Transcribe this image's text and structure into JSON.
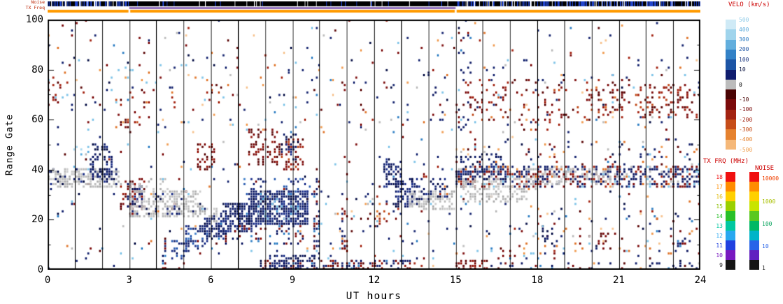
{
  "chart_data": {
    "type": "scatter",
    "title": "",
    "xlabel": "UT hours",
    "ylabel": "Range Gate",
    "xlim": [
      0,
      24
    ],
    "ylim": [
      0,
      100
    ],
    "xticks": [
      0,
      3,
      6,
      9,
      12,
      15,
      18,
      21,
      24
    ],
    "yticks": [
      0,
      20,
      40,
      60,
      80,
      100
    ],
    "x_minor_step": 1,
    "gridlines": "vertical-hourly",
    "seed": 7,
    "resolution": {
      "time_bins": 280,
      "gates": 101
    },
    "strips": {
      "noise_label": "Noise",
      "txfreq_label": "TX Freq",
      "noise_bar": {
        "base": "#000000",
        "tick": "#2244cc",
        "solid_hours": [
          3,
          15
        ]
      },
      "purple_line": {
        "hours": [
          3,
          15
        ],
        "color": "#5a2a9d"
      },
      "orange_bar": {
        "color": "#ff9a00",
        "gap_hours": [
          3,
          15
        ]
      }
    },
    "legends": {
      "velo": {
        "title": "VELO (km/s)",
        "cells": [
          "#cfeaf6",
          "#9fd4ec",
          "#62aedd",
          "#3381c6",
          "#1d55a5",
          "#101d6e",
          "#bcbcbc",
          "#4a0404",
          "#7b0b0b",
          "#a32311",
          "#c64d19",
          "#e5822f",
          "#f5b879"
        ],
        "labels": [
          {
            "f": 0,
            "t": "500",
            "c": "#8fcbe8"
          },
          {
            "f": 0.077,
            "t": "400",
            "c": "#62aedd"
          },
          {
            "f": 0.154,
            "t": "300",
            "c": "#3381c6"
          },
          {
            "f": 0.231,
            "t": "200",
            "c": "#1d55a5"
          },
          {
            "f": 0.308,
            "t": "100",
            "c": "#17337e"
          },
          {
            "f": 0.385,
            "t": "10",
            "c": "#0a1340"
          },
          {
            "f": 0.5,
            "t": "0",
            "c": "#000000"
          },
          {
            "f": 0.615,
            "t": "-10",
            "c": "#4a0404"
          },
          {
            "f": 0.692,
            "t": "-100",
            "c": "#7b0b0b"
          },
          {
            "f": 0.769,
            "t": "-200",
            "c": "#a32311"
          },
          {
            "f": 0.846,
            "t": "-300",
            "c": "#c64d19"
          },
          {
            "f": 0.923,
            "t": "-400",
            "c": "#e5822f"
          },
          {
            "f": 1,
            "t": "-500",
            "c": "#f0a050"
          }
        ]
      },
      "txfrq": {
        "title": "TX FRQ (MHz)",
        "cells": [
          "#f01010",
          "#ff8c00",
          "#ffd000",
          "#9ad000",
          "#28c028",
          "#00c8a0",
          "#28a8f0",
          "#2040e0",
          "#7818c0",
          "#141414"
        ],
        "labels": [
          {
            "f": 0.05,
            "t": "18",
            "c": "#f01010"
          },
          {
            "f": 0.15,
            "t": "17",
            "c": "#ff8c00"
          },
          {
            "f": 0.25,
            "t": "16",
            "c": "#e0b800"
          },
          {
            "f": 0.35,
            "t": "15",
            "c": "#8cc000"
          },
          {
            "f": 0.45,
            "t": "14",
            "c": "#28c028"
          },
          {
            "f": 0.55,
            "t": "13",
            "c": "#00c8a0"
          },
          {
            "f": 0.65,
            "t": "12",
            "c": "#28a8f0"
          },
          {
            "f": 0.75,
            "t": "11",
            "c": "#2040e0"
          },
          {
            "f": 0.85,
            "t": "10",
            "c": "#7818c0"
          },
          {
            "f": 0.95,
            "t": "9",
            "c": "#141414"
          }
        ]
      },
      "noise": {
        "title": "NOISE",
        "cells": [
          "#f01010",
          "#ff8c00",
          "#ffd000",
          "#c8e400",
          "#5ac820",
          "#00b864",
          "#00b4c8",
          "#2864e8",
          "#6020c0",
          "#141414"
        ],
        "labels": [
          {
            "f": 0.07,
            "t": "10000",
            "c": "#f04000"
          },
          {
            "f": 0.3,
            "t": "1000",
            "c": "#a8c000"
          },
          {
            "f": 0.53,
            "t": "100",
            "c": "#00a058"
          },
          {
            "f": 0.76,
            "t": "10",
            "c": "#2864e8"
          },
          {
            "f": 0.98,
            "t": "1",
            "c": "#141414"
          }
        ]
      }
    },
    "palettes": {
      "navy": [
        [
          "#0d1862",
          3
        ],
        [
          "#15246f",
          3
        ],
        [
          "#1b2f8a",
          2
        ],
        [
          "#060f45",
          2
        ]
      ],
      "navyblue": [
        [
          "#15246f",
          3
        ],
        [
          "#2a5cb0",
          2
        ],
        [
          "#1b2f8a",
          2
        ],
        [
          "#3f7fc9",
          1
        ]
      ],
      "ltblue": [
        [
          "#7fc4e8",
          2
        ],
        [
          "#a8d8f0",
          2
        ],
        [
          "#57aadd",
          1
        ]
      ],
      "gray": [
        [
          "#bdbdbd",
          3
        ],
        [
          "#cccccc",
          2
        ],
        [
          "#adadad",
          2
        ]
      ],
      "reds_dark": [
        [
          "#5c0707",
          3
        ],
        [
          "#7d0d0d",
          3
        ],
        [
          "#93150b",
          2
        ]
      ],
      "reds_mix": [
        [
          "#7d0d0d",
          2
        ],
        [
          "#a32311",
          2
        ],
        [
          "#c14a1a",
          1
        ],
        [
          "#5c0707",
          2
        ]
      ],
      "mix": [
        [
          "#15246f",
          3
        ],
        [
          "#7d0d0d",
          2
        ],
        [
          "#a32311",
          1
        ],
        [
          "#7fc4e8",
          1.5
        ],
        [
          "#e0762c",
          1
        ],
        [
          "#f09c52",
          1
        ],
        [
          "#2f7fc4",
          1
        ],
        [
          "#bdbdbd",
          0.7
        ],
        [
          "#5c0707",
          1
        ],
        [
          "#f7c491",
          0.8
        ],
        [
          "#060f45",
          1
        ]
      ],
      "mixdark": [
        [
          "#0d1862",
          3
        ],
        [
          "#15246f",
          2
        ],
        [
          "#7d0d0d",
          2
        ],
        [
          "#93150b",
          1
        ],
        [
          "#5c0707",
          1
        ],
        [
          "#2f7fc4",
          0.7
        ]
      ],
      "bandmix": [
        [
          "#0d1862",
          3
        ],
        [
          "#15246f",
          2
        ],
        [
          "#7d0d0d",
          2
        ],
        [
          "#a32311",
          1
        ],
        [
          "#bdbdbd",
          1.5
        ],
        [
          "#7fc4e8",
          0.6
        ],
        [
          "#e0762c",
          0.5
        ]
      ]
    },
    "regions": [
      {
        "h": [
          0,
          24
        ],
        "g": [
          0,
          100
        ],
        "d": 0.018,
        "p": "mix"
      },
      {
        "h": [
          0,
          24
        ],
        "g": [
          55,
          82
        ],
        "d": 0.014,
        "p": "mix"
      },
      {
        "h": [
          0,
          24
        ],
        "g": [
          5,
          30
        ],
        "d": 0.008,
        "p": "mix"
      },
      {
        "h": [
          0,
          2.6
        ],
        "g": [
          33,
          40
        ],
        "d": 0.55,
        "p": "gray"
      },
      {
        "h": [
          0,
          2.6
        ],
        "g": [
          34,
          40
        ],
        "d": 0.15,
        "p": "navy"
      },
      {
        "h": [
          0.05,
          0.5
        ],
        "g": [
          66,
          76
        ],
        "d": 0.15,
        "p": "reds_mix"
      },
      {
        "h": [
          1.6,
          2.4
        ],
        "g": [
          36,
          50
        ],
        "d": 0.4,
        "p": "navy"
      },
      {
        "h": [
          0.9,
          1.5
        ],
        "g": [
          40,
          50
        ],
        "d": 0.12,
        "p": "ltblue"
      },
      {
        "h": [
          2.7,
          3.6
        ],
        "g": [
          24,
          36
        ],
        "d": 0.35,
        "p": "reds_dark"
      },
      {
        "h": [
          2.9,
          3.45
        ],
        "g": [
          25,
          34
        ],
        "d": 0.3,
        "p": "navy"
      },
      {
        "h": [
          2.5,
          3.7
        ],
        "g": [
          55,
          72
        ],
        "d": 0.07,
        "p": "reds_mix"
      },
      {
        "h": [
          3.0,
          5.6
        ],
        "g": [
          21,
          31
        ],
        "d": 0.5,
        "p": "gray"
      },
      {
        "h": [
          3.0,
          4.4
        ],
        "g": [
          30,
          36
        ],
        "d": 0.25,
        "p": "gray"
      },
      {
        "h": [
          3.0,
          5.6
        ],
        "g": [
          22,
          30
        ],
        "d": 0.1,
        "p": "navy"
      },
      {
        "h": [
          4.2,
          4.36
        ],
        "g": [
          0,
          12
        ],
        "d": 0.45,
        "p": "mixdark"
      },
      {
        "h": [
          4.6,
          5.2
        ],
        "g": [
          4,
          12
        ],
        "d": 0.4,
        "p": "navyblue"
      },
      {
        "h": [
          5.1,
          5.9
        ],
        "g": [
          8,
          17
        ],
        "d": 0.45,
        "p": "navyblue"
      },
      {
        "h": [
          5.8,
          6.6
        ],
        "g": [
          12,
          21
        ],
        "d": 0.5,
        "p": "navy"
      },
      {
        "h": [
          6.5,
          7.5
        ],
        "g": [
          15,
          26
        ],
        "d": 0.6,
        "p": "navy"
      },
      {
        "h": [
          7.4,
          9.55
        ],
        "g": [
          18,
          31
        ],
        "d": 0.72,
        "p": "navy"
      },
      {
        "h": [
          7.2,
          9.7
        ],
        "g": [
          29,
          36
        ],
        "d": 0.18,
        "p": "navyblue"
      },
      {
        "h": [
          6.2,
          9.5
        ],
        "g": [
          10,
          18
        ],
        "d": 0.16,
        "p": "mixdark"
      },
      {
        "h": [
          7.5,
          9.3
        ],
        "g": [
          20,
          30
        ],
        "d": 0.08,
        "p": "ltblue"
      },
      {
        "h": [
          5.4,
          6.2
        ],
        "g": [
          18,
          26
        ],
        "d": 0.25,
        "p": "gray"
      },
      {
        "h": [
          5.5,
          6.1
        ],
        "g": [
          40,
          50
        ],
        "d": 0.28,
        "p": "reds_dark"
      },
      {
        "h": [
          7.4,
          8.4
        ],
        "g": [
          42,
          56
        ],
        "d": 0.32,
        "p": "reds_dark"
      },
      {
        "h": [
          8.5,
          9.4
        ],
        "g": [
          40,
          52
        ],
        "d": 0.26,
        "p": "reds_mix"
      },
      {
        "h": [
          8.6,
          9.25
        ],
        "g": [
          44,
          54
        ],
        "d": 0.22,
        "p": "navy"
      },
      {
        "h": [
          6.8,
          7.3
        ],
        "g": [
          80,
          90
        ],
        "d": 0.12,
        "p": "reds_mix"
      },
      {
        "h": [
          5.8,
          6.4
        ],
        "g": [
          66,
          74
        ],
        "d": 0.1,
        "p": "reds_mix"
      },
      {
        "h": [
          7.8,
          13.3
        ],
        "g": [
          0,
          3
        ],
        "d": 0.45,
        "p": "mixdark"
      },
      {
        "h": [
          8.2,
          9.8
        ],
        "g": [
          0,
          5
        ],
        "d": 0.4,
        "p": "navy"
      },
      {
        "h": [
          15.0,
          16.2
        ],
        "g": [
          0,
          3
        ],
        "d": 0.5,
        "p": "reds_dark"
      },
      {
        "h": [
          16.2,
          24
        ],
        "g": [
          0,
          2
        ],
        "d": 0.12,
        "p": "mixdark"
      },
      {
        "h": [
          9.85,
          10.0
        ],
        "g": [
          4,
          40
        ],
        "d": 0.3,
        "p": "mixdark"
      },
      {
        "h": [
          10.85,
          11.0
        ],
        "g": [
          5,
          30
        ],
        "d": 0.22,
        "p": "mixdark"
      },
      {
        "h": [
          11.2,
          12.3
        ],
        "g": [
          16,
          30
        ],
        "d": 0.08,
        "p": "mix"
      },
      {
        "h": [
          12.1,
          12.6
        ],
        "g": [
          18,
          30
        ],
        "d": 0.15,
        "p": "reds_mix"
      },
      {
        "h": [
          12.35,
          12.95
        ],
        "g": [
          33,
          44
        ],
        "d": 0.45,
        "p": "navy"
      },
      {
        "h": [
          12.85,
          13.55
        ],
        "g": [
          25,
          36
        ],
        "d": 0.45,
        "p": "navy"
      },
      {
        "h": [
          13.3,
          15.0
        ],
        "g": [
          24,
          31
        ],
        "d": 0.5,
        "p": "gray"
      },
      {
        "h": [
          13.4,
          14.7
        ],
        "g": [
          28,
          36
        ],
        "d": 0.25,
        "p": "navy"
      },
      {
        "h": [
          14.0,
          14.6
        ],
        "g": [
          55,
          85
        ],
        "d": 0.07,
        "p": "mixdark"
      },
      {
        "h": [
          15.1,
          15.6
        ],
        "g": [
          55,
          100
        ],
        "d": 0.09,
        "p": "mixdark"
      },
      {
        "h": [
          15.0,
          24
        ],
        "g": [
          33,
          41
        ],
        "d": 0.48,
        "p": "bandmix"
      },
      {
        "h": [
          15.2,
          17.6
        ],
        "g": [
          27,
          36
        ],
        "d": 0.4,
        "p": "gray"
      },
      {
        "h": [
          15.0,
          16.8
        ],
        "g": [
          36,
          46
        ],
        "d": 0.3,
        "p": "navy"
      },
      {
        "h": [
          17.6,
          21.0
        ],
        "g": [
          34,
          40
        ],
        "d": 0.2,
        "p": "gray"
      },
      {
        "h": [
          15,
          24
        ],
        "g": [
          42,
          52
        ],
        "d": 0.05,
        "p": "mix"
      },
      {
        "h": [
          16,
          24
        ],
        "g": [
          4,
          20
        ],
        "d": 0.04,
        "p": "mix"
      },
      {
        "h": [
          15.3,
          24
        ],
        "g": [
          60,
          76
        ],
        "d": 0.09,
        "p": "reds_mix"
      },
      {
        "h": [
          19.8,
          21.2
        ],
        "g": [
          64,
          72
        ],
        "d": 0.2,
        "p": "reds_dark"
      },
      {
        "h": [
          21.8,
          23.6
        ],
        "g": [
          62,
          74
        ],
        "d": 0.16,
        "p": "reds_mix"
      },
      {
        "h": [
          17.3,
          19.3
        ],
        "g": [
          55,
          60
        ],
        "d": 0.1,
        "p": "reds_mix"
      },
      {
        "h": [
          18.2,
          18.6
        ],
        "g": [
          10,
          16
        ],
        "d": 0.2,
        "p": "navy"
      },
      {
        "h": [
          20.3,
          20.7
        ],
        "g": [
          8,
          14
        ],
        "d": 0.18,
        "p": "reds_dark"
      },
      {
        "h": [
          23.0,
          23.5
        ],
        "g": [
          6,
          12
        ],
        "d": 0.18,
        "p": "mixdark"
      }
    ]
  }
}
